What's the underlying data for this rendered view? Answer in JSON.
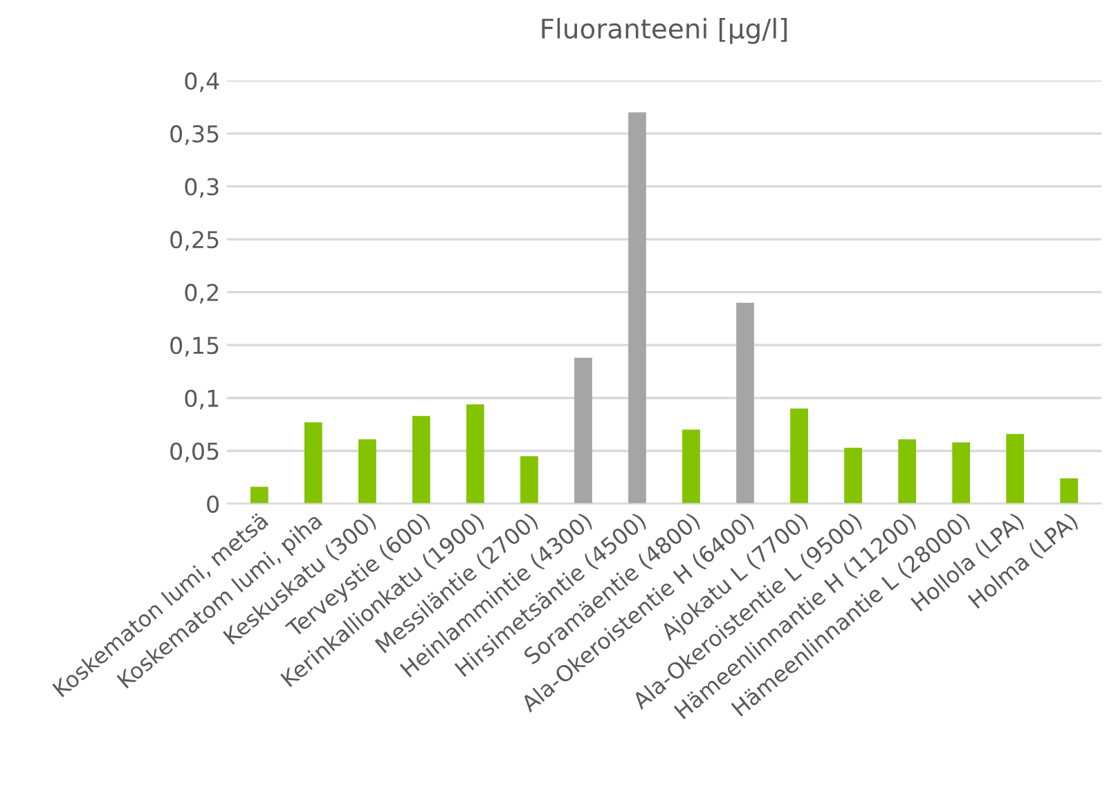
{
  "chart_data": {
    "type": "bar",
    "title": "Fluoranteeni [µg/l]",
    "categories": [
      "Koskematon lumi, metsä",
      "Koskematom lumi, piha",
      "Keskuskatu (300)",
      "Terveystie (600)",
      "Kerinkallionkatu (1900)",
      "Messiläntie (2700)",
      "Heinlammintie (4300)",
      "Hirsimetsäntie (4500)",
      "Soramäentie (4800)",
      "Ala-Okeroistentie H (6400)",
      "Ajokatu L (7700)",
      "Ala-Okeroistentie L (9500)",
      "Hämeenlinnantie H (11200)",
      "Hämeenlinnantie L (28000)",
      "Hollola (LPA)",
      "Holma (LPA)"
    ],
    "values": [
      0.016,
      0.077,
      0.061,
      0.083,
      0.094,
      0.045,
      0.138,
      0.37,
      0.07,
      0.19,
      0.09,
      0.053,
      0.061,
      0.058,
      0.066,
      0.024
    ],
    "colors": [
      "#84c300",
      "#84c300",
      "#84c300",
      "#84c300",
      "#84c300",
      "#84c300",
      "#a5a5a5",
      "#a5a5a5",
      "#84c300",
      "#a5a5a5",
      "#84c300",
      "#84c300",
      "#84c300",
      "#84c300",
      "#84c300",
      "#84c300"
    ],
    "ylim": [
      0,
      0.4
    ],
    "yticks": [
      {
        "value": 0,
        "label": "0"
      },
      {
        "value": 0.05,
        "label": "0,05"
      },
      {
        "value": 0.1,
        "label": "0,1"
      },
      {
        "value": 0.15,
        "label": "0,15"
      },
      {
        "value": 0.2,
        "label": "0,2"
      },
      {
        "value": 0.25,
        "label": "0,25"
      },
      {
        "value": 0.3,
        "label": "0,3"
      },
      {
        "value": 0.35,
        "label": "0,35"
      },
      {
        "value": 0.4,
        "label": "0,4"
      }
    ],
    "grid": "y"
  }
}
